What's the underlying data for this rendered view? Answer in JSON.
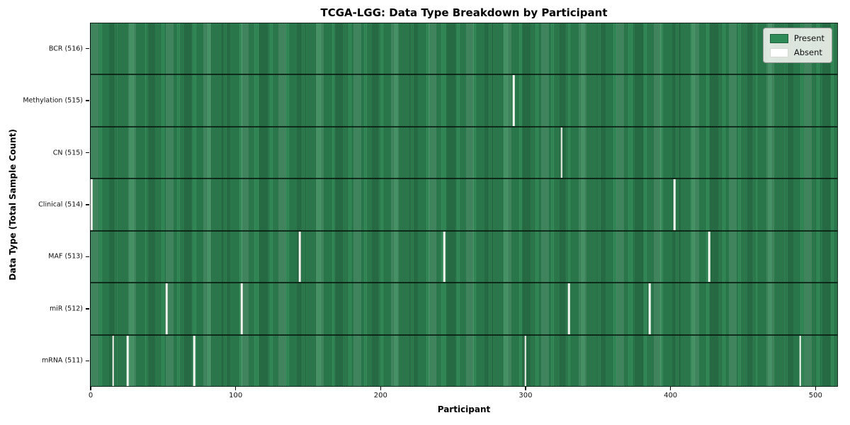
{
  "chart_data": {
    "type": "heatmap",
    "title": "TCGA-LGG: Data Type Breakdown by Participant",
    "xlabel": "Participant",
    "ylabel": "Data Type (Total Sample Count)",
    "n_participants": 516,
    "xlim": [
      -0.5,
      515.5
    ],
    "x_ticks": [
      0,
      100,
      200,
      300,
      400,
      500
    ],
    "grid": false,
    "legend": {
      "position": "upper right",
      "entries": [
        {
          "label": "Present",
          "color": "#2e8b57"
        },
        {
          "label": "Absent",
          "color": "#ffffff"
        }
      ]
    },
    "colors": {
      "present_fill": "#2e8b57",
      "present_edge": "#1d5837",
      "absent_fill": "#f5f5f0",
      "row_separator": "#14281c"
    },
    "rows": [
      {
        "label": "BCR (516)",
        "data_type": "BCR",
        "sample_count": 516,
        "absent_participants": []
      },
      {
        "label": "Methylation (515)",
        "data_type": "Methylation",
        "sample_count": 515,
        "absent_participants": [
          292
        ]
      },
      {
        "label": "CN (515)",
        "data_type": "CN",
        "sample_count": 515,
        "absent_participants": [
          325
        ]
      },
      {
        "label": "Clinical (514)",
        "data_type": "Clinical",
        "sample_count": 514,
        "absent_participants": [
          0,
          403
        ]
      },
      {
        "label": "MAF (513)",
        "data_type": "MAF",
        "sample_count": 513,
        "absent_participants": [
          144,
          244,
          427
        ]
      },
      {
        "label": "miR (512)",
        "data_type": "miR",
        "sample_count": 512,
        "absent_participants": [
          52,
          104,
          330,
          386
        ]
      },
      {
        "label": "mRNA (511)",
        "data_type": "mRNA",
        "sample_count": 511,
        "absent_participants": [
          15,
          25,
          71,
          300,
          490
        ]
      }
    ]
  }
}
